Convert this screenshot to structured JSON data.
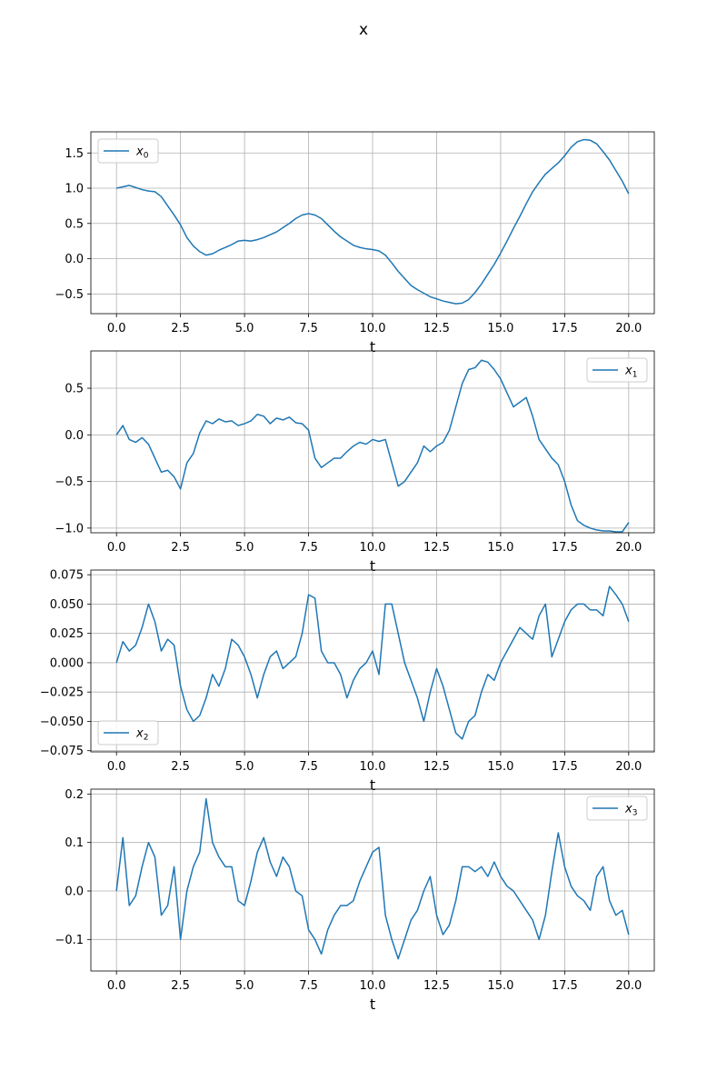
{
  "figure": {
    "title": "x"
  },
  "colors": {
    "line": "#1f77b4",
    "grid": "#b0b0b0",
    "axes": "#000000",
    "legend_border": "#cccccc"
  },
  "chart_data": [
    {
      "type": "line",
      "series": [
        {
          "name": "x_0",
          "legend_main": "x",
          "legend_sub": "0"
        }
      ],
      "legend_position": "top-left",
      "xlabel": "t",
      "grid": true,
      "xlim": [
        -1.0,
        21.0
      ],
      "ylim": [
        -0.78,
        1.8
      ],
      "xticks": [
        0,
        2.5,
        5,
        7.5,
        10,
        12.5,
        15,
        17.5,
        20
      ],
      "xtick_labels": [
        "0.0",
        "2.5",
        "5.0",
        "7.5",
        "10.0",
        "12.5",
        "15.0",
        "17.5",
        "20.0"
      ],
      "yticks": [
        -0.5,
        0,
        0.5,
        1.0,
        1.5
      ],
      "ytick_labels": [
        "−0.5",
        "0.0",
        "0.5",
        "1.0",
        "1.5"
      ],
      "x": [
        0,
        0.25,
        0.5,
        0.75,
        1,
        1.25,
        1.5,
        1.75,
        2,
        2.25,
        2.5,
        2.75,
        3,
        3.25,
        3.5,
        3.75,
        4,
        4.25,
        4.5,
        4.75,
        5,
        5.25,
        5.5,
        5.75,
        6,
        6.25,
        6.5,
        6.75,
        7,
        7.25,
        7.5,
        7.75,
        8,
        8.25,
        8.5,
        8.75,
        9,
        9.25,
        9.5,
        9.75,
        10,
        10.25,
        10.5,
        10.75,
        11,
        11.25,
        11.5,
        11.75,
        12,
        12.25,
        12.5,
        12.75,
        13,
        13.25,
        13.5,
        13.75,
        14,
        14.25,
        14.5,
        14.75,
        15,
        15.25,
        15.5,
        15.75,
        16,
        16.25,
        16.5,
        16.75,
        17,
        17.25,
        17.5,
        17.75,
        18,
        18.25,
        18.5,
        18.75,
        19,
        19.25,
        19.5,
        19.75,
        20
      ],
      "y": [
        1.0,
        1.02,
        1.04,
        1.01,
        0.98,
        0.96,
        0.95,
        0.88,
        0.75,
        0.62,
        0.48,
        0.3,
        0.18,
        0.1,
        0.05,
        0.07,
        0.12,
        0.16,
        0.2,
        0.25,
        0.26,
        0.25,
        0.27,
        0.3,
        0.34,
        0.38,
        0.44,
        0.5,
        0.57,
        0.62,
        0.64,
        0.62,
        0.57,
        0.48,
        0.39,
        0.31,
        0.25,
        0.19,
        0.16,
        0.14,
        0.13,
        0.11,
        0.05,
        -0.06,
        -0.18,
        -0.28,
        -0.38,
        -0.44,
        -0.49,
        -0.54,
        -0.57,
        -0.6,
        -0.62,
        -0.64,
        -0.63,
        -0.58,
        -0.48,
        -0.36,
        -0.22,
        -0.08,
        0.08,
        0.25,
        0.43,
        0.6,
        0.78,
        0.95,
        1.08,
        1.2,
        1.28,
        1.36,
        1.46,
        1.58,
        1.66,
        1.69,
        1.68,
        1.63,
        1.52,
        1.4,
        1.25,
        1.1,
        0.92
      ]
    },
    {
      "type": "line",
      "series": [
        {
          "name": "x_1",
          "legend_main": "x",
          "legend_sub": "1"
        }
      ],
      "legend_position": "top-right",
      "xlabel": "t",
      "grid": true,
      "xlim": [
        -1.0,
        21.0
      ],
      "ylim": [
        -1.05,
        0.9
      ],
      "xticks": [
        0,
        2.5,
        5,
        7.5,
        10,
        12.5,
        15,
        17.5,
        20
      ],
      "xtick_labels": [
        "0.0",
        "2.5",
        "5.0",
        "7.5",
        "10.0",
        "12.5",
        "15.0",
        "17.5",
        "20.0"
      ],
      "yticks": [
        -1.0,
        -0.5,
        0,
        0.5
      ],
      "ytick_labels": [
        "−1.0",
        "−0.5",
        "0.0",
        "0.5"
      ],
      "x": [
        0,
        0.25,
        0.5,
        0.75,
        1,
        1.25,
        1.5,
        1.75,
        2,
        2.25,
        2.5,
        2.75,
        3,
        3.25,
        3.5,
        3.75,
        4,
        4.25,
        4.5,
        4.75,
        5,
        5.25,
        5.5,
        5.75,
        6,
        6.25,
        6.5,
        6.75,
        7,
        7.25,
        7.5,
        7.75,
        8,
        8.25,
        8.5,
        8.75,
        9,
        9.25,
        9.5,
        9.75,
        10,
        10.25,
        10.5,
        10.75,
        11,
        11.25,
        11.5,
        11.75,
        12,
        12.25,
        12.5,
        12.75,
        13,
        13.25,
        13.5,
        13.75,
        14,
        14.25,
        14.5,
        14.75,
        15,
        15.25,
        15.5,
        15.75,
        16,
        16.25,
        16.5,
        16.75,
        17,
        17.25,
        17.5,
        17.75,
        18,
        18.25,
        18.5,
        18.75,
        19,
        19.25,
        19.5,
        19.75,
        20
      ],
      "y": [
        0.0,
        0.1,
        -0.05,
        -0.08,
        -0.03,
        -0.1,
        -0.25,
        -0.4,
        -0.38,
        -0.45,
        -0.58,
        -0.3,
        -0.2,
        0.02,
        0.15,
        0.12,
        0.17,
        0.14,
        0.15,
        0.1,
        0.12,
        0.15,
        0.22,
        0.2,
        0.12,
        0.18,
        0.16,
        0.19,
        0.13,
        0.12,
        0.05,
        -0.25,
        -0.35,
        -0.3,
        -0.25,
        -0.25,
        -0.18,
        -0.12,
        -0.08,
        -0.1,
        -0.05,
        -0.07,
        -0.05,
        -0.3,
        -0.55,
        -0.5,
        -0.4,
        -0.3,
        -0.12,
        -0.18,
        -0.12,
        -0.08,
        0.05,
        0.3,
        0.55,
        0.7,
        0.72,
        0.8,
        0.78,
        0.7,
        0.6,
        0.45,
        0.3,
        0.35,
        0.4,
        0.2,
        -0.05,
        -0.15,
        -0.25,
        -0.32,
        -0.5,
        -0.75,
        -0.92,
        -0.97,
        -1.0,
        -1.02,
        -1.03,
        -1.03,
        -1.04,
        -1.04,
        -0.94
      ]
    },
    {
      "type": "line",
      "series": [
        {
          "name": "x_2",
          "legend_main": "x",
          "legend_sub": "2"
        }
      ],
      "legend_position": "bottom-left",
      "xlabel": "t",
      "grid": true,
      "xlim": [
        -1.0,
        21.0
      ],
      "ylim": [
        -0.076,
        0.079
      ],
      "xticks": [
        0,
        2.5,
        5,
        7.5,
        10,
        12.5,
        15,
        17.5,
        20
      ],
      "xtick_labels": [
        "0.0",
        "2.5",
        "5.0",
        "7.5",
        "10.0",
        "12.5",
        "15.0",
        "17.5",
        "20.0"
      ],
      "yticks": [
        -0.075,
        -0.05,
        -0.025,
        0,
        0.025,
        0.05,
        0.075
      ],
      "ytick_labels": [
        "−0.075",
        "−0.050",
        "−0.025",
        "0.000",
        "0.025",
        "0.050",
        "0.075"
      ],
      "x": [
        0,
        0.25,
        0.5,
        0.75,
        1,
        1.25,
        1.5,
        1.75,
        2,
        2.25,
        2.5,
        2.75,
        3,
        3.25,
        3.5,
        3.75,
        4,
        4.25,
        4.5,
        4.75,
        5,
        5.25,
        5.5,
        5.75,
        6,
        6.25,
        6.5,
        6.75,
        7,
        7.25,
        7.5,
        7.75,
        8,
        8.25,
        8.5,
        8.75,
        9,
        9.25,
        9.5,
        9.75,
        10,
        10.25,
        10.5,
        10.75,
        11,
        11.25,
        11.5,
        11.75,
        12,
        12.25,
        12.5,
        12.75,
        13,
        13.25,
        13.5,
        13.75,
        14,
        14.25,
        14.5,
        14.75,
        15,
        15.25,
        15.5,
        15.75,
        16,
        16.25,
        16.5,
        16.75,
        17,
        17.25,
        17.5,
        17.75,
        18,
        18.25,
        18.5,
        18.75,
        19,
        19.25,
        19.5,
        19.75,
        20
      ],
      "y": [
        0.0,
        0.018,
        0.01,
        0.015,
        0.03,
        0.05,
        0.035,
        0.01,
        0.02,
        0.015,
        -0.02,
        -0.04,
        -0.05,
        -0.045,
        -0.03,
        -0.01,
        -0.02,
        -0.005,
        0.02,
        0.015,
        0.005,
        -0.01,
        -0.03,
        -0.01,
        0.005,
        0.01,
        -0.005,
        0.0,
        0.005,
        0.025,
        0.058,
        0.055,
        0.01,
        0.0,
        0.0,
        -0.01,
        -0.03,
        -0.015,
        -0.005,
        0.0,
        0.01,
        -0.01,
        0.05,
        0.05,
        0.025,
        0.0,
        -0.015,
        -0.03,
        -0.05,
        -0.025,
        -0.005,
        -0.02,
        -0.04,
        -0.06,
        -0.065,
        -0.05,
        -0.045,
        -0.025,
        -0.01,
        -0.015,
        0.0,
        0.01,
        0.02,
        0.03,
        0.025,
        0.02,
        0.04,
        0.05,
        0.005,
        0.02,
        0.035,
        0.045,
        0.05,
        0.05,
        0.045,
        0.045,
        0.04,
        0.065,
        0.058,
        0.05,
        0.035
      ]
    },
    {
      "type": "line",
      "series": [
        {
          "name": "x_3",
          "legend_main": "x",
          "legend_sub": "3"
        }
      ],
      "legend_position": "top-right",
      "xlabel": "t",
      "grid": true,
      "xlim": [
        -1.0,
        21.0
      ],
      "ylim": [
        -0.165,
        0.21
      ],
      "xticks": [
        0,
        2.5,
        5,
        7.5,
        10,
        12.5,
        15,
        17.5,
        20
      ],
      "xtick_labels": [
        "0.0",
        "2.5",
        "5.0",
        "7.5",
        "10.0",
        "12.5",
        "15.0",
        "17.5",
        "20.0"
      ],
      "yticks": [
        -0.1,
        0,
        0.1,
        0.2
      ],
      "ytick_labels": [
        "−0.1",
        "0.0",
        "0.1",
        "0.2"
      ],
      "x": [
        0,
        0.25,
        0.5,
        0.75,
        1,
        1.25,
        1.5,
        1.75,
        2,
        2.25,
        2.5,
        2.75,
        3,
        3.25,
        3.5,
        3.75,
        4,
        4.25,
        4.5,
        4.75,
        5,
        5.25,
        5.5,
        5.75,
        6,
        6.25,
        6.5,
        6.75,
        7,
        7.25,
        7.5,
        7.75,
        8,
        8.25,
        8.5,
        8.75,
        9,
        9.25,
        9.5,
        9.75,
        10,
        10.25,
        10.5,
        10.75,
        11,
        11.25,
        11.5,
        11.75,
        12,
        12.25,
        12.5,
        12.75,
        13,
        13.25,
        13.5,
        13.75,
        14,
        14.25,
        14.5,
        14.75,
        15,
        15.25,
        15.5,
        15.75,
        16,
        16.25,
        16.5,
        16.75,
        17,
        17.25,
        17.5,
        17.75,
        18,
        18.25,
        18.5,
        18.75,
        19,
        19.25,
        19.5,
        19.75,
        20
      ],
      "y": [
        0.0,
        0.11,
        -0.03,
        -0.01,
        0.05,
        0.1,
        0.07,
        -0.05,
        -0.03,
        0.05,
        -0.1,
        0.0,
        0.05,
        0.08,
        0.19,
        0.1,
        0.07,
        0.05,
        0.05,
        -0.02,
        -0.03,
        0.02,
        0.08,
        0.11,
        0.06,
        0.03,
        0.07,
        0.05,
        0.0,
        -0.01,
        -0.08,
        -0.1,
        -0.13,
        -0.08,
        -0.05,
        -0.03,
        -0.03,
        -0.02,
        0.02,
        0.05,
        0.08,
        0.09,
        -0.05,
        -0.1,
        -0.14,
        -0.1,
        -0.06,
        -0.04,
        0.0,
        0.03,
        -0.05,
        -0.09,
        -0.07,
        -0.02,
        0.05,
        0.05,
        0.04,
        0.05,
        0.03,
        0.06,
        0.03,
        0.01,
        0.0,
        -0.02,
        -0.04,
        -0.06,
        -0.1,
        -0.05,
        0.04,
        0.12,
        0.05,
        0.01,
        -0.01,
        -0.02,
        -0.04,
        0.03,
        0.05,
        -0.02,
        -0.05,
        -0.04,
        -0.09
      ]
    }
  ]
}
